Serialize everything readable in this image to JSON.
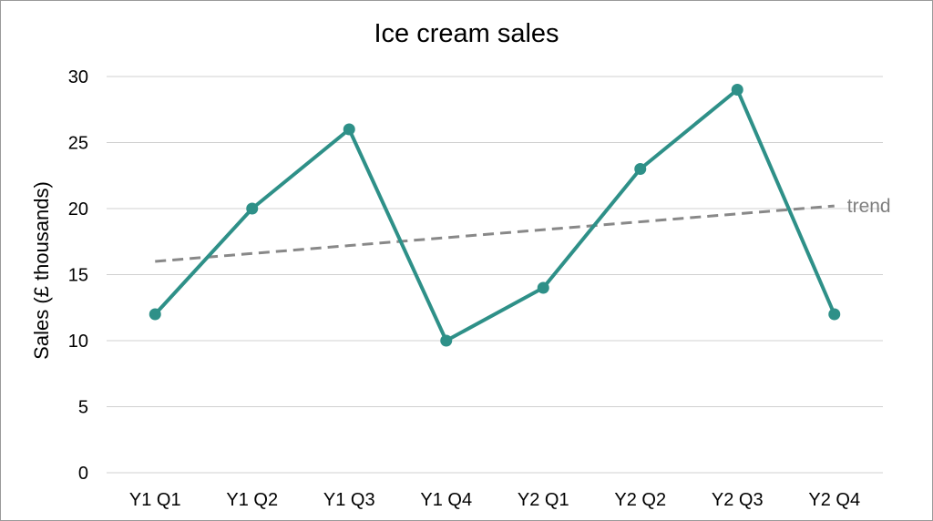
{
  "chart_data": {
    "type": "line",
    "title": "Ice cream sales",
    "xlabel": "",
    "ylabel": "Sales (£ thousands)",
    "categories": [
      "Y1 Q1",
      "Y1 Q2",
      "Y1 Q3",
      "Y1 Q4",
      "Y2 Q1",
      "Y2 Q2",
      "Y2 Q3",
      "Y2 Q4"
    ],
    "ylim": [
      0,
      30
    ],
    "yticks": [
      0,
      5,
      10,
      15,
      20,
      25,
      30
    ],
    "grid": true,
    "series": [
      {
        "values": [
          12,
          20,
          26,
          10,
          14,
          23,
          29,
          12
        ],
        "color": "#2e9088",
        "markers": true
      }
    ],
    "trendline": {
      "label": "trend",
      "start": 16,
      "end": 20.2,
      "style": "dashed",
      "color": "#888888"
    }
  }
}
